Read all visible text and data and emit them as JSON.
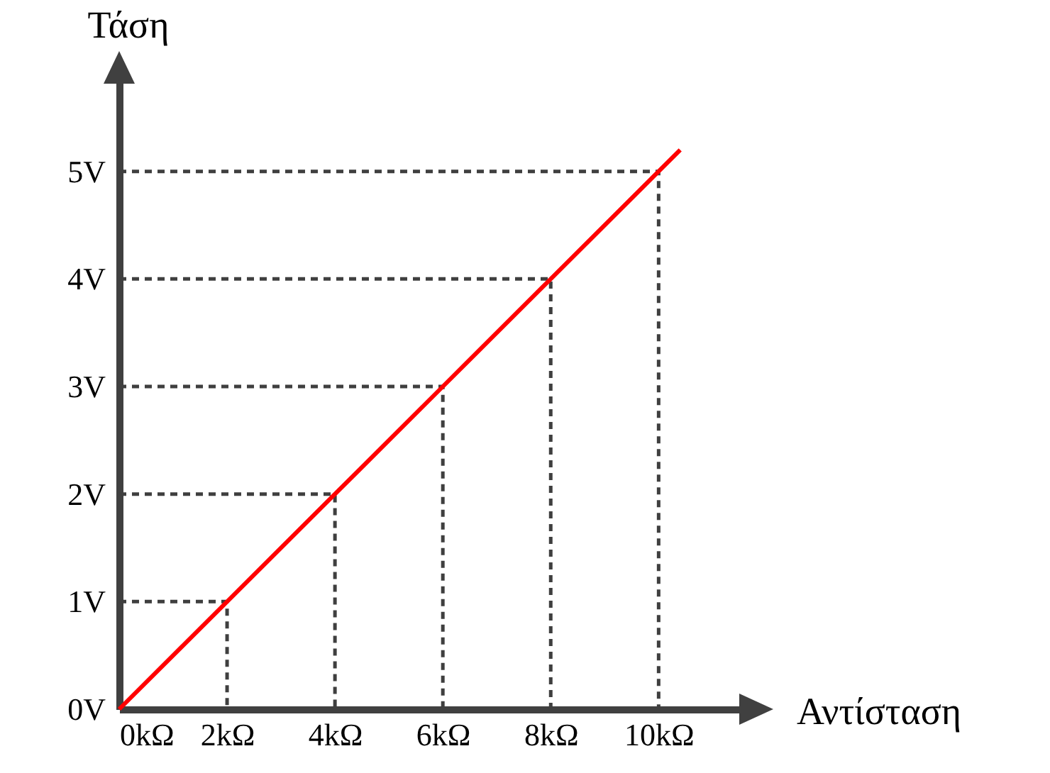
{
  "chart_data": {
    "type": "line",
    "xlabel": "Αντίσταση",
    "ylabel": "Τάση",
    "xlim": [
      0,
      11.6
    ],
    "ylim": [
      0,
      6
    ],
    "xticks": [
      {
        "value": 0,
        "label": "0kΩ"
      },
      {
        "value": 2,
        "label": "2kΩ"
      },
      {
        "value": 4,
        "label": "4kΩ"
      },
      {
        "value": 6,
        "label": "6kΩ"
      },
      {
        "value": 8,
        "label": "8kΩ"
      },
      {
        "value": 10,
        "label": "10kΩ"
      }
    ],
    "yticks": [
      {
        "value": 0,
        "label": "0V"
      },
      {
        "value": 1,
        "label": "1V"
      },
      {
        "value": 2,
        "label": "2V"
      },
      {
        "value": 3,
        "label": "3V"
      },
      {
        "value": 4,
        "label": "4V"
      },
      {
        "value": 5,
        "label": "5V"
      }
    ],
    "series": [
      {
        "color": "#3f3f3f",
        "line_style": "dashed",
        "x": [
          0,
          2,
          2
        ],
        "values": [
          1,
          1,
          0
        ]
      },
      {
        "color": "#3f3f3f",
        "line_style": "dashed",
        "x": [
          0,
          4,
          4
        ],
        "values": [
          2,
          2,
          0
        ]
      },
      {
        "color": "#3f3f3f",
        "line_style": "dashed",
        "x": [
          0,
          6,
          6
        ],
        "values": [
          3,
          3,
          0
        ]
      },
      {
        "color": "#3f3f3f",
        "line_style": "dashed",
        "x": [
          0,
          8,
          8
        ],
        "values": [
          4,
          4,
          0
        ]
      },
      {
        "color": "#3f3f3f",
        "line_style": "dashed",
        "x": [
          0,
          10,
          10
        ],
        "values": [
          5,
          5,
          0
        ]
      },
      {
        "color": "#ff0000",
        "x": [
          0,
          2,
          4,
          6,
          8,
          10,
          10.4
        ],
        "values": [
          0,
          1,
          2,
          3,
          4,
          5,
          5.2
        ]
      }
    ],
    "marker": "none",
    "line_style": "solid"
  }
}
